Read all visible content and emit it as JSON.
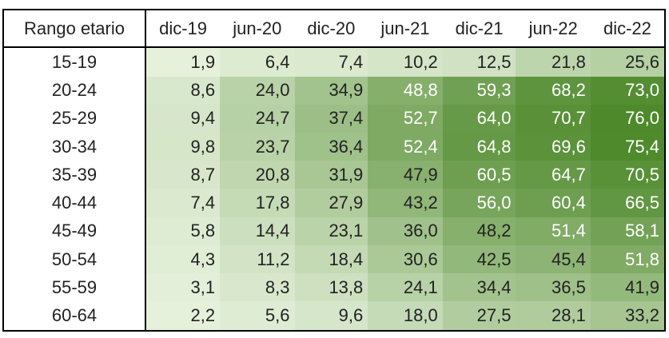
{
  "table": {
    "header": [
      "Rango etario",
      "dic-19",
      "jun-20",
      "dic-20",
      "jun-21",
      "dic-21",
      "jun-22",
      "dic-22"
    ],
    "rows": [
      [
        "15-19",
        "1,9",
        "6,4",
        "7,4",
        "10,2",
        "12,5",
        "21,8",
        "25,6"
      ],
      [
        "20-24",
        "8,6",
        "24,0",
        "34,9",
        "48,8",
        "59,3",
        "68,2",
        "73,0"
      ],
      [
        "25-29",
        "9,4",
        "24,7",
        "37,4",
        "52,7",
        "64,0",
        "70,7",
        "76,0"
      ],
      [
        "30-34",
        "9,8",
        "23,7",
        "36,4",
        "52,4",
        "64,8",
        "69,6",
        "75,4"
      ],
      [
        "35-39",
        "8,7",
        "20,8",
        "31,9",
        "47,9",
        "60,5",
        "64,7",
        "70,5"
      ],
      [
        "40-44",
        "7,4",
        "17,8",
        "27,9",
        "43,2",
        "56,0",
        "60,4",
        "66,5"
      ],
      [
        "45-49",
        "5,8",
        "14,4",
        "23,1",
        "36,0",
        "48,2",
        "51,4",
        "58,1"
      ],
      [
        "50-54",
        "4,3",
        "11,2",
        "18,4",
        "30,6",
        "42,5",
        "45,4",
        "51,8"
      ],
      [
        "55-59",
        "3,1",
        "8,3",
        "13,8",
        "24,1",
        "34,4",
        "36,5",
        "41,9"
      ],
      [
        "60-64",
        "2,2",
        "5,6",
        "9,6",
        "18,0",
        "27,5",
        "28,1",
        "33,2"
      ]
    ]
  }
}
